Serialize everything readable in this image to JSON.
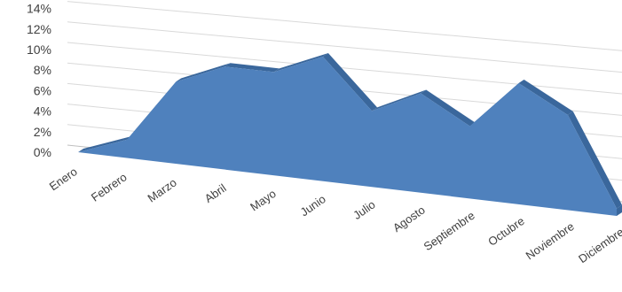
{
  "chart_data": {
    "type": "area",
    "title": "",
    "xlabel": "",
    "ylabel": "",
    "categories": [
      "Enero",
      "Febrero",
      "Marzo",
      "Abril",
      "Mayo",
      "Junio",
      "Julio",
      "Agosto",
      "Septiembre",
      "Octubre",
      "Noviembre",
      "Diciembre"
    ],
    "values": [
      0.0,
      1.8,
      8.0,
      10.0,
      10.0,
      12.0,
      7.3,
      9.5,
      6.9,
      11.5,
      9.0,
      0.7
    ],
    "y_ticks": [
      "0%",
      "2%",
      "4%",
      "6%",
      "8%",
      "10%",
      "12%",
      "14%"
    ],
    "ylim": [
      0,
      14
    ],
    "grid": true,
    "legend": "none",
    "colors": {
      "area_front": "#4f81bd",
      "area_top": "#3a679c",
      "grid": "#d9d9d9",
      "text": "#404040"
    }
  }
}
